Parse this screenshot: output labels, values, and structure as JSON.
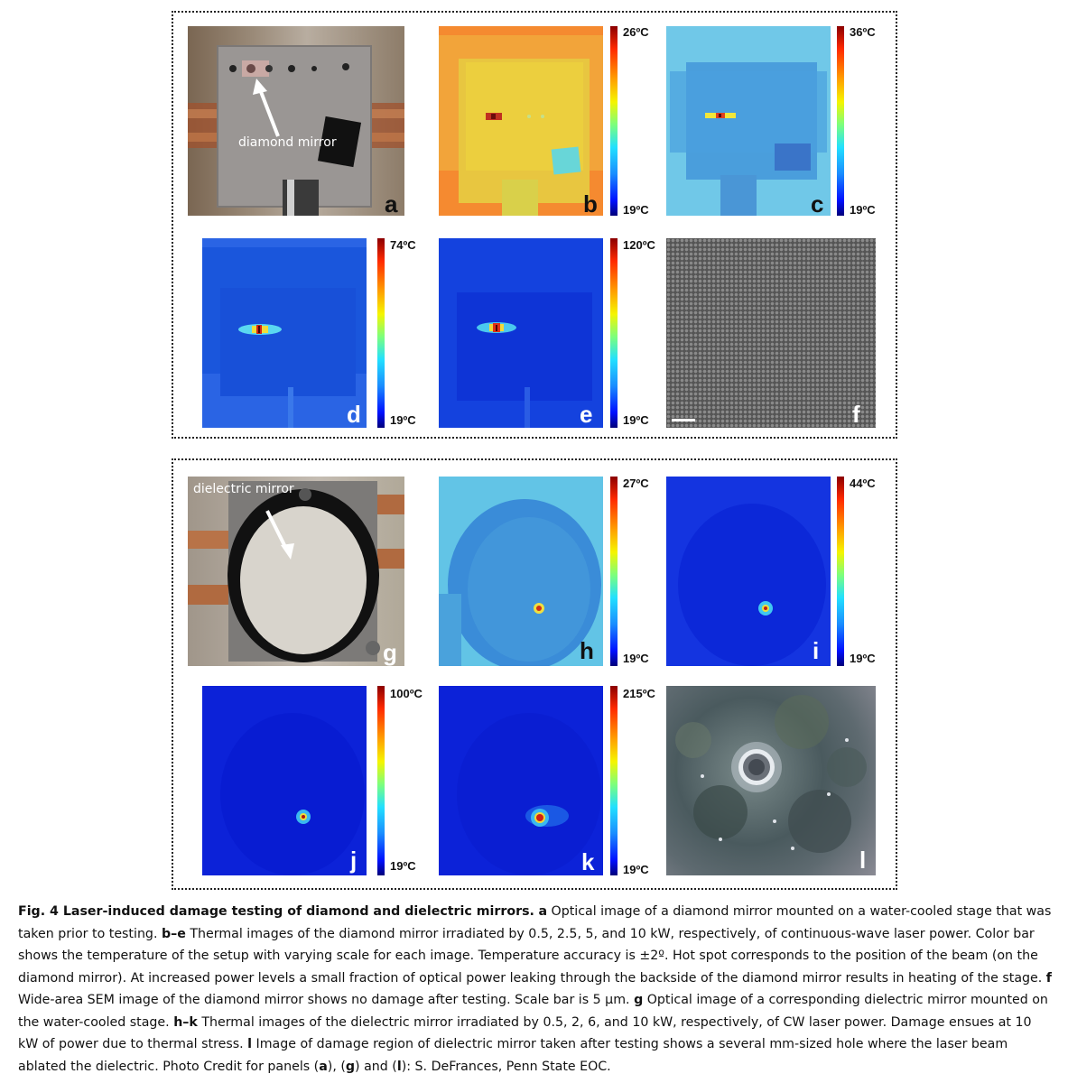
{
  "figure": {
    "panels": {
      "a": {
        "letter": "a",
        "annotation": "diamond mirror"
      },
      "b": {
        "letter": "b",
        "max": "26ºC",
        "min": "19ºC"
      },
      "c": {
        "letter": "c",
        "max": "36ºC",
        "min": "19ºC"
      },
      "d": {
        "letter": "d",
        "max": "74ºC",
        "min": "19ºC"
      },
      "e": {
        "letter": "e",
        "max": "120ºC",
        "min": "19ºC"
      },
      "f": {
        "letter": "f"
      },
      "g": {
        "letter": "g",
        "annotation": "dielectric mirror"
      },
      "h": {
        "letter": "h",
        "max": "27ºC",
        "min": "19ºC"
      },
      "i": {
        "letter": "i",
        "max": "44ºC",
        "min": "19ºC"
      },
      "j": {
        "letter": "j",
        "max": "100ºC",
        "min": "19ºC"
      },
      "k": {
        "letter": "k",
        "max": "215ºC",
        "min": "19ºC"
      },
      "l": {
        "letter": "l"
      }
    }
  },
  "caption": {
    "fig_label": "Fig. 4 Laser-induced damage testing of diamond and dielectric mirrors.",
    "a_label": "a",
    "a_text": " Optical image of a diamond mirror mounted on a water-cooled stage that was taken prior to testing. ",
    "be_label": "b–e",
    "be_text": " Thermal images of the diamond mirror irradiated by 0.5, 2.5, 5, and 10 kW, respectively, of continuous-wave laser power. Color bar shows the temperature of the setup with varying scale for each image. Temperature accuracy is ±2º. Hot spot corresponds to the position of the beam (on the diamond mirror). At increased power levels a small fraction of optical power leaking through the backside of the diamond mirror results in heating of the stage. ",
    "f_label": "f",
    "f_text": " Wide-area SEM image of the diamond mirror shows no damage after testing. Scale bar is 5 μm. ",
    "g_label": "g",
    "g_text": " Optical image of a corresponding dielectric mirror mounted on the water-cooled stage. ",
    "hk_label": "h–k",
    "hk_text": " Thermal images of the dielectric mirror irradiated by 0.5, 2, 6, and 10 kW, respectively, of CW laser power. Damage ensues at 10 kW of power due to thermal stress. ",
    "l_label": "l",
    "l_text": " Image of damage region of dielectric mirror taken after testing shows a several mm-sized hole where the laser beam ablated the dielectric. Photo Credit for panels (",
    "credit_a": "a",
    "credit_sep1": "), (",
    "credit_g": "g",
    "credit_sep2": ") and (",
    "credit_l": "l",
    "credit_end": "): S. DeFrances, Penn State EOC."
  }
}
